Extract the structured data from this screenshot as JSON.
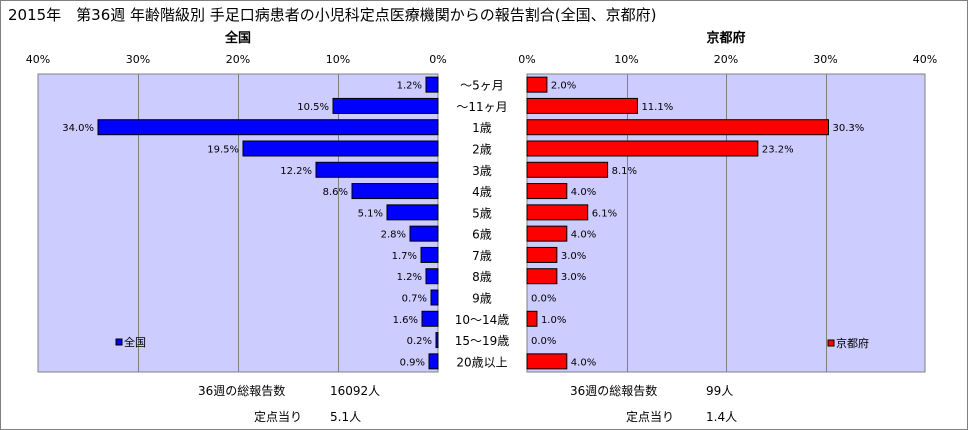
{
  "title": "2015年　第36週 年齢階級別 手足口病患者の小児科定点医療機関からの報告割合(全国、京都府)",
  "chart_data": [
    {
      "type": "bar",
      "orientation": "horizontal",
      "direction": "right-to-left",
      "title": "全国",
      "categories": [
        "～5ヶ月",
        "～11ヶ月",
        "1歳",
        "2歳",
        "3歳",
        "4歳",
        "5歳",
        "6歳",
        "7歳",
        "8歳",
        "9歳",
        "10～14歳",
        "15～19歳",
        "20歳以上"
      ],
      "series": [
        {
          "name": "全国",
          "color": "#0000ff",
          "values": [
            1.2,
            10.5,
            34.0,
            19.5,
            12.2,
            8.6,
            5.1,
            2.8,
            1.7,
            1.2,
            0.7,
            1.6,
            0.2,
            0.9
          ]
        }
      ],
      "xlim": [
        0,
        40
      ],
      "ticks": [
        "0%",
        "10%",
        "20%",
        "30%",
        "40%"
      ],
      "grid": true,
      "legend": "bottom-left",
      "plot_background": "#ccccff"
    },
    {
      "type": "bar",
      "orientation": "horizontal",
      "direction": "left-to-right",
      "title": "京都府",
      "categories": [
        "～5ヶ月",
        "～11ヶ月",
        "1歳",
        "2歳",
        "3歳",
        "4歳",
        "5歳",
        "6歳",
        "7歳",
        "8歳",
        "9歳",
        "10～14歳",
        "15～19歳",
        "20歳以上"
      ],
      "series": [
        {
          "name": "京都府",
          "color": "#ff0000",
          "values": [
            2.0,
            11.1,
            30.3,
            23.2,
            8.1,
            4.0,
            6.1,
            4.0,
            3.0,
            3.0,
            0.0,
            1.0,
            0.0,
            4.0
          ]
        }
      ],
      "xlim": [
        0,
        40
      ],
      "ticks": [
        "0%",
        "10%",
        "20%",
        "30%",
        "40%"
      ],
      "grid": true,
      "legend": "bottom-right",
      "plot_background": "#ccccff"
    }
  ],
  "footer": {
    "national": {
      "total_label": "36週の総報告数",
      "total_value": "16092人",
      "per_label": "定点当り",
      "per_value": "5.1人"
    },
    "kyoto": {
      "total_label": "36週の総報告数",
      "total_value": "99人",
      "per_label": "定点当り",
      "per_value": "1.4人"
    }
  }
}
